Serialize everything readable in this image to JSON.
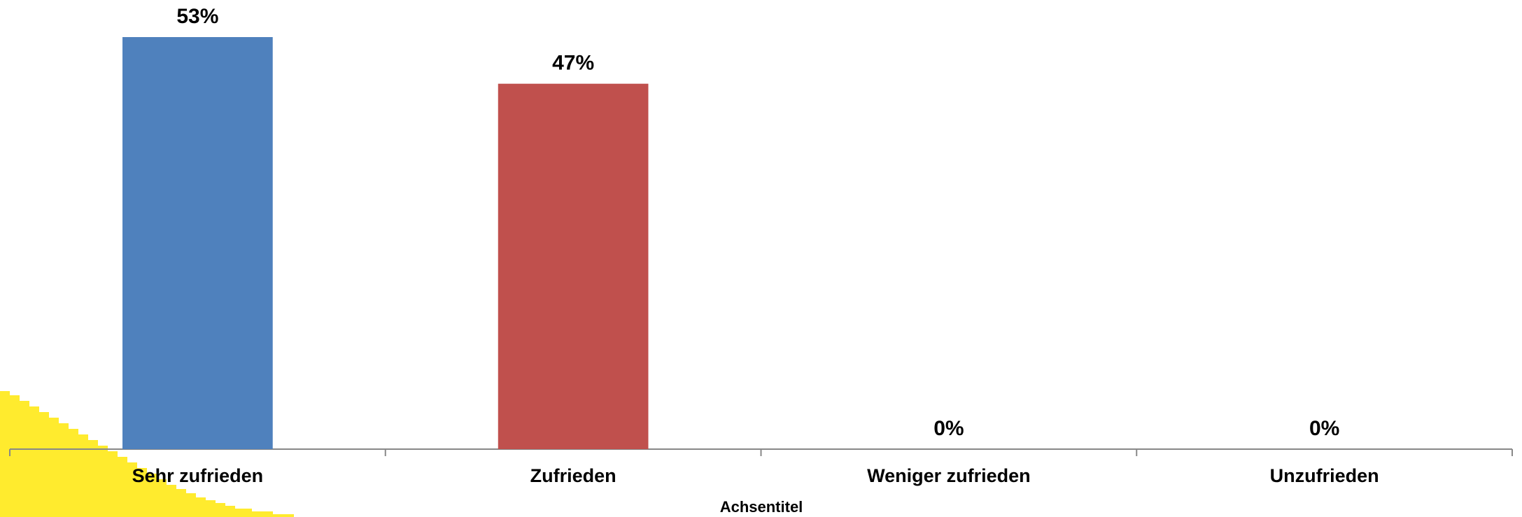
{
  "chart_data": {
    "type": "bar",
    "categories": [
      "Sehr zufrieden",
      "Zufrieden",
      "Weniger zufrieden",
      "Unzufrieden"
    ],
    "values": [
      53,
      47,
      0,
      0
    ],
    "value_labels": [
      "53%",
      "47%",
      "0%",
      "0%"
    ],
    "colors": [
      "#4f81bd",
      "#c0504d",
      "#9bbb59",
      "#8064a2"
    ],
    "x_label": "Achsentitel",
    "ylim": [
      0,
      53
    ]
  }
}
